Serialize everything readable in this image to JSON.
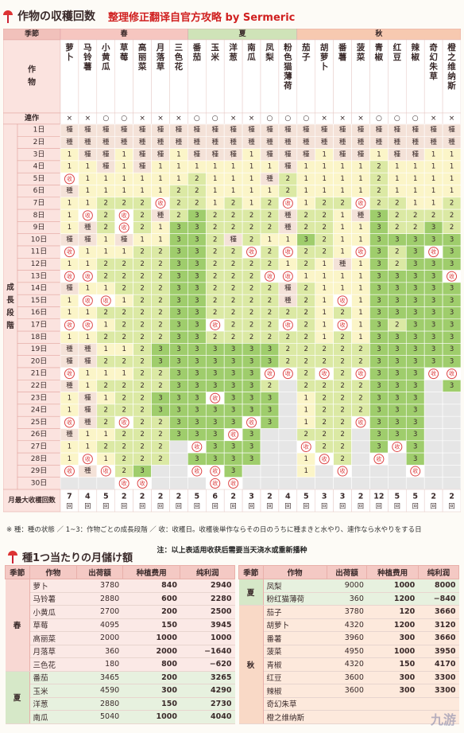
{
  "title": "作物の収穫回数",
  "subtitle": "整理修正翻译自官方攻略 by Sermeric",
  "labels": {
    "season_header": "季節",
    "crop_header": "作物",
    "repeat_row": "連作",
    "growth_stage": "成長段階",
    "harvest_count": "月最大收穫回数"
  },
  "seasons": [
    {
      "name": "春",
      "span": 7,
      "color": "#f6c6c0"
    },
    {
      "name": "夏",
      "span": 6,
      "color": "#cfe3b8"
    },
    {
      "name": "秋",
      "span": 9,
      "color": "#f7c9b0"
    }
  ],
  "crops": [
    "萝卜",
    "马铃薯",
    "小黄瓜",
    "草莓",
    "高丽菜",
    "月落草",
    "三色花",
    "番茄",
    "玉米",
    "洋葱",
    "南瓜",
    "凤梨",
    "粉色猫薄荷",
    "茄子",
    "胡萝卜",
    "番薯",
    "菠菜",
    "青椒",
    "红豆",
    "辣椒",
    "奇幻朱草",
    "橙之维纳斯"
  ],
  "repeat": [
    "×",
    "×",
    "○",
    "○",
    "×",
    "×",
    "×",
    "○",
    "○",
    "×",
    "×",
    "○",
    "○",
    "○",
    "×",
    "×",
    "×",
    "○",
    "○",
    "○",
    "×",
    "×"
  ],
  "days": [
    "1日",
    "2日",
    "3日",
    "4日",
    "5日",
    "6日",
    "7日",
    "8日",
    "9日",
    "10日",
    "11日",
    "12日",
    "13日",
    "14日",
    "15日",
    "16日",
    "17日",
    "18日",
    "19日",
    "20日",
    "21日",
    "22日",
    "23日",
    "24日",
    "25日",
    "26日",
    "27日",
    "28日",
    "29日",
    "30日"
  ],
  "grid": [
    [
      "種",
      "種",
      "種",
      "種",
      "種",
      "種",
      "種",
      "種",
      "種",
      "種",
      "種",
      "種",
      "種",
      "種",
      "種",
      "種",
      "種",
      "種",
      "種",
      "種",
      "種",
      "種"
    ],
    [
      "種",
      "種",
      "種",
      "種",
      "種",
      "種",
      "種",
      "種",
      "種",
      "種",
      "種",
      "種",
      "種",
      "種",
      "種",
      "種",
      "種",
      "種",
      "種",
      "種",
      "種",
      "種"
    ],
    [
      "1",
      "種",
      "種",
      "1",
      "種",
      "種",
      "1",
      "種",
      "種",
      "種",
      "1",
      "種",
      "種",
      "種",
      "1",
      "種",
      "種",
      "1",
      "種",
      "種",
      "1",
      "1"
    ],
    [
      "1",
      "1",
      "種",
      "1",
      "種",
      "1",
      "1",
      "1",
      "1",
      "1",
      "1",
      "1",
      "種",
      "1",
      "1",
      "1",
      "1",
      "2",
      "1",
      "1",
      "1",
      "1"
    ],
    [
      "收",
      "1",
      "1",
      "1",
      "1",
      "1",
      "1",
      "2",
      "1",
      "1",
      "1",
      "種",
      "2",
      "1",
      "1",
      "1",
      "1",
      "2",
      "1",
      "1",
      "1",
      "1"
    ],
    [
      "種",
      "1",
      "1",
      "1",
      "1",
      "1",
      "2",
      "2",
      "1",
      "1",
      "1",
      "1",
      "2",
      "1",
      "1",
      "1",
      "1",
      "2",
      "1",
      "1",
      "1",
      "1"
    ],
    [
      "1",
      "1",
      "2",
      "2",
      "2",
      "收",
      "2",
      "2",
      "1",
      "2",
      "1",
      "2",
      "收",
      "1",
      "2",
      "2",
      "收",
      "2",
      "2",
      "1",
      "1",
      "2"
    ],
    [
      "1",
      "收",
      "2",
      "收",
      "2",
      "種",
      "2",
      "3",
      "2",
      "2",
      "2",
      "2",
      "種",
      "2",
      "2",
      "1",
      "種",
      "3",
      "2",
      "2",
      "2",
      "2"
    ],
    [
      "1",
      "種",
      "2",
      "收",
      "2",
      "1",
      "3",
      "3",
      "2",
      "2",
      "2",
      "2",
      "種",
      "2",
      "2",
      "1",
      "1",
      "3",
      "2",
      "2",
      "3",
      "2"
    ],
    [
      "種",
      "種",
      "1",
      "種",
      "1",
      "1",
      "3",
      "3",
      "2",
      "種",
      "2",
      "1",
      "1",
      "3",
      "2",
      "1",
      "1",
      "3",
      "3",
      "3",
      "3",
      "3"
    ],
    [
      "收",
      "1",
      "1",
      "1",
      "2",
      "2",
      "3",
      "3",
      "2",
      "2",
      "收",
      "2",
      "收",
      "2",
      "2",
      "1",
      "收",
      "3",
      "2",
      "3",
      "收",
      "3"
    ],
    [
      "1",
      "1",
      "2",
      "2",
      "2",
      "2",
      "3",
      "3",
      "2",
      "2",
      "2",
      "2",
      "1",
      "2",
      "1",
      "種",
      "1",
      "3",
      "2",
      "3",
      "3",
      "3"
    ],
    [
      "收",
      "收",
      "2",
      "2",
      "2",
      "2",
      "3",
      "3",
      "2",
      "2",
      "2",
      "收",
      "收",
      "1",
      "1",
      "1",
      "1",
      "3",
      "3",
      "3",
      "3",
      "收"
    ],
    [
      "種",
      "1",
      "1",
      "2",
      "2",
      "2",
      "3",
      "3",
      "2",
      "2",
      "2",
      "2",
      "種",
      "2",
      "1",
      "1",
      "1",
      "3",
      "3",
      "3",
      "3",
      "3"
    ],
    [
      "1",
      "收",
      "收",
      "1",
      "2",
      "2",
      "3",
      "3",
      "2",
      "2",
      "2",
      "2",
      "種",
      "2",
      "1",
      "收",
      "1",
      "3",
      "3",
      "3",
      "3",
      "3"
    ],
    [
      "1",
      "1",
      "2",
      "2",
      "2",
      "2",
      "3",
      "3",
      "2",
      "2",
      "2",
      "2",
      "2",
      "2",
      "1",
      "2",
      "1",
      "3",
      "3",
      "3",
      "3",
      "3"
    ],
    [
      "收",
      "收",
      "1",
      "2",
      "2",
      "2",
      "3",
      "3",
      "收",
      "2",
      "2",
      "2",
      "收",
      "2",
      "1",
      "收",
      "1",
      "3",
      "2",
      "3",
      "3",
      "3"
    ],
    [
      "1",
      "1",
      "2",
      "2",
      "2",
      "2",
      "3",
      "3",
      "2",
      "2",
      "2",
      "2",
      "2",
      "2",
      "1",
      "2",
      "1",
      "3",
      "3",
      "3",
      "3",
      "3"
    ],
    [
      "種",
      "種",
      "1",
      "1",
      "2",
      "3",
      "3",
      "3",
      "3",
      "3",
      "3",
      "3",
      "2",
      "2",
      "2",
      "2",
      "2",
      "3",
      "3",
      "3",
      "3",
      "3"
    ],
    [
      "種",
      "種",
      "2",
      "2",
      "2",
      "3",
      "3",
      "3",
      "3",
      "3",
      "3",
      "3",
      "2",
      "2",
      "2",
      "2",
      "2",
      "3",
      "3",
      "3",
      "3",
      "3"
    ],
    [
      "收",
      "1",
      "1",
      "1",
      "2",
      "2",
      "3",
      "3",
      "3",
      "3",
      "3",
      "收",
      "收",
      "2",
      "收",
      "2",
      "收",
      "3",
      "3",
      "3",
      "收",
      "收"
    ],
    [
      "種",
      "1",
      "2",
      "2",
      "2",
      "2",
      "3",
      "3",
      "3",
      "3",
      "3",
      "2",
      "",
      "2",
      "2",
      "2",
      "2",
      "3",
      "3",
      "3",
      "",
      "3"
    ],
    [
      "1",
      "種",
      "1",
      "2",
      "2",
      "3",
      "3",
      "3",
      "收",
      "3",
      "3",
      "3",
      "",
      "1",
      "2",
      "2",
      "2",
      "3",
      "3",
      "3",
      "",
      ""
    ],
    [
      "1",
      "種",
      "2",
      "2",
      "2",
      "3",
      "3",
      "3",
      "3",
      "3",
      "3",
      "3",
      "",
      "1",
      "2",
      "2",
      "2",
      "3",
      "3",
      "3",
      "",
      ""
    ],
    [
      "收",
      "種",
      "2",
      "收",
      "2",
      "2",
      "3",
      "3",
      "3",
      "3",
      "收",
      "3",
      "",
      "1",
      "2",
      "2",
      "收",
      "3",
      "3",
      "3",
      "",
      ""
    ],
    [
      "種",
      "1",
      "1",
      "2",
      "2",
      "2",
      "3",
      "3",
      "3",
      "收",
      "3",
      "",
      "",
      "2",
      "2",
      "2",
      "",
      "3",
      "3",
      "3",
      "",
      ""
    ],
    [
      "1",
      "1",
      "2",
      "2",
      "2",
      "2",
      "",
      "收",
      "3",
      "3",
      "3",
      "",
      "",
      "收",
      "2",
      "2",
      "",
      "3",
      "收",
      "3",
      "",
      ""
    ],
    [
      "1",
      "收",
      "1",
      "2",
      "2",
      "2",
      "",
      "3",
      "3",
      "3",
      "3",
      "",
      "",
      "1",
      "收",
      "2",
      "",
      "收",
      "",
      "3",
      "",
      ""
    ],
    [
      "收",
      "種",
      "收",
      "2",
      "3",
      "",
      "",
      "收",
      "收",
      "3",
      "",
      "",
      "",
      "1",
      "",
      "收",
      "",
      "",
      "",
      "收",
      "",
      ""
    ],
    [
      "",
      "",
      "",
      "收",
      "收",
      "",
      "",
      "",
      "收",
      "收",
      "",
      "",
      "",
      "",
      "",
      "",
      "",
      "",
      "",
      "",
      "",
      ""
    ]
  ],
  "max_harvest": [
    "7回",
    "4回",
    "5回",
    "2回",
    "2回",
    "2回",
    "2回",
    "5回",
    "6回",
    "2回",
    "3回",
    "2回",
    "4回",
    "5回",
    "3回",
    "3回",
    "2回",
    "12回",
    "5回",
    "5回",
    "2回",
    "2回"
  ],
  "colors": {
    "spring": "#f6c6c0",
    "summer": "#cfe3b8",
    "autumn": "#f7c9b0",
    "stage1": "#fbf5c8",
    "stage2": "#dbe9a4",
    "stage3": "#9fcd6c",
    "seed": "#f4e2d8",
    "empty": "#e6e6e6",
    "harvest": "#d44"
  },
  "legend": "※ 種：種の状態 ／ 1~3：作物ごとの成長段階 ／ 收：收穫日。收穫後単作ならその日のうちに種まきと水やり、連作なら水やりをする日",
  "note": "注：以上表适用收获后需要当天浇水或重新播种",
  "profit_title": "種1つ当たりの月儲け額",
  "profit_headers": [
    "季節",
    "作物",
    "出荷額",
    "种植费用",
    "纯利润"
  ],
  "profit_left": [
    {
      "season": "春",
      "rows": [
        [
          "萝卜",
          "3780",
          "840",
          "2940"
        ],
        [
          "马铃薯",
          "2880",
          "600",
          "2280"
        ],
        [
          "小黄瓜",
          "2700",
          "200",
          "2500"
        ],
        [
          "草莓",
          "4095",
          "150",
          "3945"
        ],
        [
          "高丽菜",
          "2000",
          "1000",
          "1000"
        ],
        [
          "月落草",
          "360",
          "2000",
          "−1640"
        ],
        [
          "三色花",
          "180",
          "800",
          "−620"
        ]
      ]
    },
    {
      "season": "夏",
      "rows": [
        [
          "番茄",
          "3465",
          "200",
          "3265"
        ],
        [
          "玉米",
          "4590",
          "300",
          "4290"
        ],
        [
          "洋葱",
          "2880",
          "150",
          "2730"
        ],
        [
          "南瓜",
          "5040",
          "1000",
          "4040"
        ]
      ]
    }
  ],
  "profit_right": [
    {
      "season": "夏",
      "rows": [
        [
          "凤梨",
          "9000",
          "1000",
          "8000"
        ],
        [
          "粉红猫薄荷",
          "360",
          "1200",
          "−840"
        ]
      ]
    },
    {
      "season": "秋",
      "rows": [
        [
          "茄子",
          "3780",
          "120",
          "3660"
        ],
        [
          "胡萝卜",
          "4320",
          "1200",
          "3120"
        ],
        [
          "番薯",
          "3960",
          "300",
          "3660"
        ],
        [
          "菠菜",
          "4950",
          "1000",
          "3950"
        ],
        [
          "青椒",
          "4320",
          "150",
          "4170"
        ],
        [
          "红豆",
          "3600",
          "300",
          "3300"
        ],
        [
          "辣椒",
          "3600",
          "300",
          "3300"
        ],
        [
          "奇幻朱草",
          "",
          "",
          " "
        ],
        [
          "橙之维纳斯",
          "",
          "",
          ""
        ]
      ]
    }
  ],
  "watermark": "九游"
}
